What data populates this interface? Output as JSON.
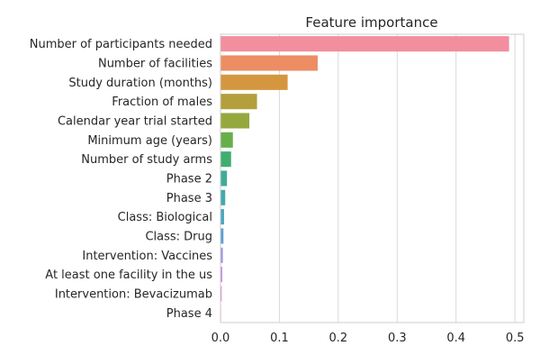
{
  "chart_data": {
    "type": "bar",
    "orientation": "horizontal",
    "title": "Feature importance",
    "xlabel": "",
    "ylabel": "",
    "xlim": [
      0,
      0.515
    ],
    "x_ticks": [
      0.0,
      0.1,
      0.2,
      0.3,
      0.4,
      0.5
    ],
    "x_tick_labels": [
      "0.0",
      "0.1",
      "0.2",
      "0.3",
      "0.4",
      "0.5"
    ],
    "grid": "vertical",
    "categories": [
      "Number of participants needed",
      "Number of facilities",
      "Study duration (months)",
      "Fraction of males",
      "Calendar year trial started",
      "Minimum age (years)",
      "Number of study arms",
      "Phase 2",
      "Phase 3",
      "Class: Biological",
      "Class: Drug",
      "Intervention: Vaccines",
      "At least one facility in the us",
      "Intervention: Bevacizumab",
      "Phase 4"
    ],
    "values": [
      0.49,
      0.165,
      0.114,
      0.062,
      0.049,
      0.021,
      0.018,
      0.011,
      0.008,
      0.006,
      0.005,
      0.004,
      0.003,
      0.002,
      0.001
    ],
    "colors": [
      "#f28e9e",
      "#ec8d63",
      "#d4963f",
      "#b3a03c",
      "#95a83e",
      "#66b04a",
      "#3fae6f",
      "#41ab97",
      "#43a8ae",
      "#47a6c2",
      "#5b9fd6",
      "#9c96e5",
      "#c48be6",
      "#e083d0",
      "#f189b0"
    ]
  }
}
